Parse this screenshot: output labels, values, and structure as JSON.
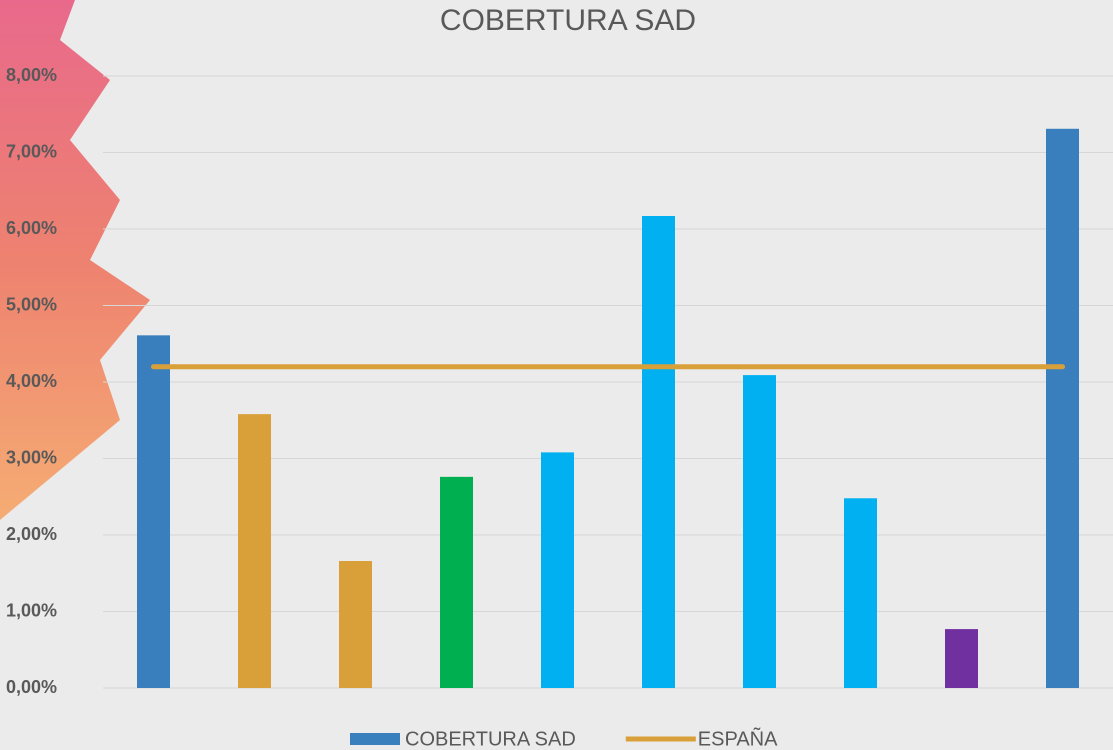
{
  "chart_data": {
    "type": "bar",
    "title": "COBERTURA SAD",
    "categories": [
      null,
      null,
      null,
      null,
      null,
      null,
      null,
      null,
      null,
      null
    ],
    "series": [
      {
        "name": "COBERTURA SAD",
        "type": "bar",
        "color": "#3a7fbd",
        "colors": [
          "#3a7fbd",
          "#d9a03a",
          "#d9a03a",
          "#00b050",
          "#00b0f0",
          "#00b0f0",
          "#00b0f0",
          "#00b0f0",
          "#7030a0",
          "#3a7fbd"
        ],
        "values": [
          4.61,
          3.58,
          1.66,
          2.76,
          3.08,
          6.17,
          4.09,
          2.48,
          0.77,
          7.31
        ]
      },
      {
        "name": "ESPAÑA",
        "type": "line",
        "color": "#d9a03a",
        "values": [
          4.2,
          4.2,
          4.2,
          4.2,
          4.2,
          4.2,
          4.2,
          4.2,
          4.2,
          4.2
        ]
      }
    ],
    "ylim": [
      0,
      8
    ],
    "yticks": [
      {
        "value": 0,
        "label": "0,00%"
      },
      {
        "value": 1,
        "label": "1,00%"
      },
      {
        "value": 2,
        "label": "2,00%"
      },
      {
        "value": 3,
        "label": "3,00%"
      },
      {
        "value": 4,
        "label": "4,00%"
      },
      {
        "value": 5,
        "label": "5,00%"
      },
      {
        "value": 6,
        "label": "6,00%"
      },
      {
        "value": 7,
        "label": "7,00%"
      },
      {
        "value": 8,
        "label": "8,00%"
      }
    ],
    "grid": true
  }
}
